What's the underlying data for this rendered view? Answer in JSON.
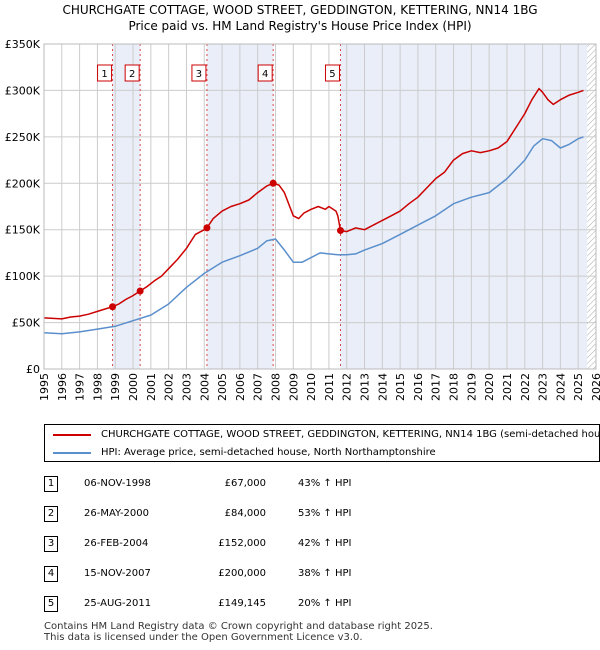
{
  "title_line1": "CHURCHGATE COTTAGE, WOOD STREET, GEDDINGTON, KETTERING, NN14 1BG",
  "title_line2": "Price paid vs. HM Land Registry's House Price Index (HPI)",
  "colors": {
    "property": "#cc0000",
    "hpi": "#5b8fcc",
    "shade": "#e9eef8",
    "grid": "#cccccc"
  },
  "chart_data": {
    "type": "line",
    "title": "Price paid vs. HM Land Registry's House Price Index (HPI)",
    "xlabel": "",
    "ylabel": "",
    "xlim": [
      1995,
      2026
    ],
    "ylim": [
      0,
      350000
    ],
    "y_ticks": [
      0,
      50000,
      100000,
      150000,
      200000,
      250000,
      300000,
      350000
    ],
    "y_tick_labels": [
      "£0",
      "£50K",
      "£100K",
      "£150K",
      "£200K",
      "£250K",
      "£300K",
      "£350K"
    ],
    "x_ticks": [
      1995,
      1996,
      1997,
      1998,
      1999,
      2000,
      2001,
      2002,
      2003,
      2004,
      2005,
      2006,
      2007,
      2008,
      2009,
      2010,
      2011,
      2012,
      2013,
      2014,
      2015,
      2016,
      2017,
      2018,
      2019,
      2020,
      2021,
      2022,
      2023,
      2024,
      2025,
      2026
    ],
    "x_tick_labels": [
      "1995",
      "1996",
      "1997",
      "1998",
      "1999",
      "2000",
      "2001",
      "2002",
      "2003",
      "2004",
      "2005",
      "2006",
      "2007",
      "2008",
      "2009",
      "2010",
      "2011",
      "2012",
      "2013",
      "2014",
      "2015",
      "2016",
      "2017",
      "2018",
      "2019",
      "2020",
      "2021",
      "2022",
      "2023",
      "2024",
      "2025",
      "2026"
    ],
    "grid": true,
    "shaded_spans": [
      [
        1998.85,
        2000.4
      ],
      [
        2004.15,
        2007.87
      ],
      [
        2011.65,
        2025.5
      ]
    ],
    "forecast_start": 2025.5,
    "series": [
      {
        "name": "CHURCHGATE COTTAGE, WOOD STREET, GEDDINGTON, KETTERING, NN14 1BG (semi-detached house)",
        "color": "#cc0000",
        "x": [
          1995.0,
          1996.0,
          1996.5,
          1997.0,
          1997.5,
          1998.0,
          1998.5,
          1998.85,
          1999.2,
          1999.6,
          2000.0,
          2000.4,
          2000.8,
          2001.2,
          2001.6,
          2002.0,
          2002.5,
          2003.0,
          2003.5,
          2004.0,
          2004.15,
          2004.5,
          2005.0,
          2005.5,
          2006.0,
          2006.5,
          2007.0,
          2007.5,
          2007.87,
          2008.2,
          2008.5,
          2008.8,
          2009.0,
          2009.3,
          2009.6,
          2010.0,
          2010.4,
          2010.8,
          2011.0,
          2011.4,
          2011.5,
          2011.65,
          2012.0,
          2012.5,
          2013.0,
          2013.5,
          2014.0,
          2014.5,
          2015.0,
          2015.5,
          2016.0,
          2016.5,
          2017.0,
          2017.5,
          2018.0,
          2018.5,
          2019.0,
          2019.5,
          2020.0,
          2020.5,
          2021.0,
          2021.5,
          2022.0,
          2022.4,
          2022.8,
          2023.0,
          2023.3,
          2023.6,
          2024.0,
          2024.5,
          2025.0,
          2025.3
        ],
        "y": [
          55000,
          54000,
          56000,
          57000,
          59000,
          62000,
          65000,
          67000,
          70000,
          75000,
          79000,
          84000,
          89000,
          95000,
          100000,
          108000,
          118000,
          130000,
          145000,
          150000,
          152000,
          162000,
          170000,
          175000,
          178000,
          182000,
          190000,
          197000,
          200000,
          198000,
          190000,
          175000,
          165000,
          162000,
          168000,
          172000,
          175000,
          172000,
          175000,
          170000,
          165000,
          149145,
          148000,
          152000,
          150000,
          155000,
          160000,
          165000,
          170000,
          178000,
          185000,
          195000,
          205000,
          212000,
          225000,
          232000,
          235000,
          233000,
          235000,
          238000,
          245000,
          260000,
          275000,
          290000,
          302000,
          298000,
          290000,
          285000,
          290000,
          295000,
          298000,
          300000
        ]
      },
      {
        "name": "HPI: Average price, semi-detached house, North Northamptonshire",
        "color": "#5b8fcc",
        "x": [
          1995.0,
          1996.0,
          1997.0,
          1998.0,
          1999.0,
          2000.0,
          2001.0,
          2002.0,
          2003.0,
          2004.0,
          2005.0,
          2006.0,
          2007.0,
          2007.5,
          2008.0,
          2008.5,
          2009.0,
          2009.5,
          2010.0,
          2010.5,
          2011.0,
          2011.5,
          2012.0,
          2012.5,
          2013.0,
          2014.0,
          2015.0,
          2016.0,
          2017.0,
          2018.0,
          2019.0,
          2020.0,
          2021.0,
          2022.0,
          2022.5,
          2023.0,
          2023.5,
          2024.0,
          2024.5,
          2025.0,
          2025.3
        ],
        "y": [
          39000,
          38000,
          40000,
          43000,
          46000,
          52000,
          58000,
          70000,
          88000,
          103000,
          115000,
          122000,
          130000,
          138000,
          140000,
          128000,
          115000,
          115000,
          120000,
          125000,
          124000,
          123000,
          123000,
          124000,
          128000,
          135000,
          145000,
          155000,
          165000,
          178000,
          185000,
          190000,
          205000,
          225000,
          240000,
          248000,
          246000,
          238000,
          242000,
          248000,
          250000
        ]
      }
    ],
    "annotations": [
      {
        "label": "1",
        "x": 1998.85,
        "y": 67000
      },
      {
        "label": "2",
        "x": 2000.4,
        "y": 84000
      },
      {
        "label": "3",
        "x": 2004.15,
        "y": 152000
      },
      {
        "label": "4",
        "x": 2007.87,
        "y": 200000
      },
      {
        "label": "5",
        "x": 2011.65,
        "y": 149145
      }
    ]
  },
  "legend": {
    "property_label": "CHURCHGATE COTTAGE, WOOD STREET, GEDDINGTON, KETTERING, NN14 1BG (semi-detached house)",
    "hpi_label": "HPI: Average price, semi-detached house, North Northamptonshire"
  },
  "sales": [
    {
      "num": "1",
      "date": "06-NOV-1998",
      "price": "£67,000",
      "hpi": "43% ↑ HPI"
    },
    {
      "num": "2",
      "date": "26-MAY-2000",
      "price": "£84,000",
      "hpi": "53% ↑ HPI"
    },
    {
      "num": "3",
      "date": "26-FEB-2004",
      "price": "£152,000",
      "hpi": "42% ↑ HPI"
    },
    {
      "num": "4",
      "date": "15-NOV-2007",
      "price": "£200,000",
      "hpi": "38% ↑ HPI"
    },
    {
      "num": "5",
      "date": "25-AUG-2011",
      "price": "£149,145",
      "hpi": "20% ↑ HPI"
    }
  ],
  "footer": {
    "line1": "Contains HM Land Registry data © Crown copyright and database right 2025.",
    "line2": "This data is licensed under the Open Government Licence v3.0."
  }
}
